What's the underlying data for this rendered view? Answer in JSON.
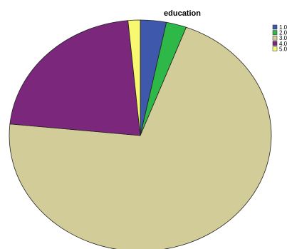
{
  "chart_data": {
    "type": "pie",
    "title": "education",
    "categories": [
      "1.0",
      "2.0",
      "3.0",
      "4.0",
      "5.0"
    ],
    "values": [
      3.2,
      2.5,
      70.9,
      21.9,
      1.5
    ],
    "colors": [
      "#3e58ac",
      "#2eb848",
      "#d2cc99",
      "#7b277c",
      "#f9f871"
    ],
    "start_angle_deg": 0,
    "direction": "clockwise",
    "legend_position": "top-right"
  }
}
